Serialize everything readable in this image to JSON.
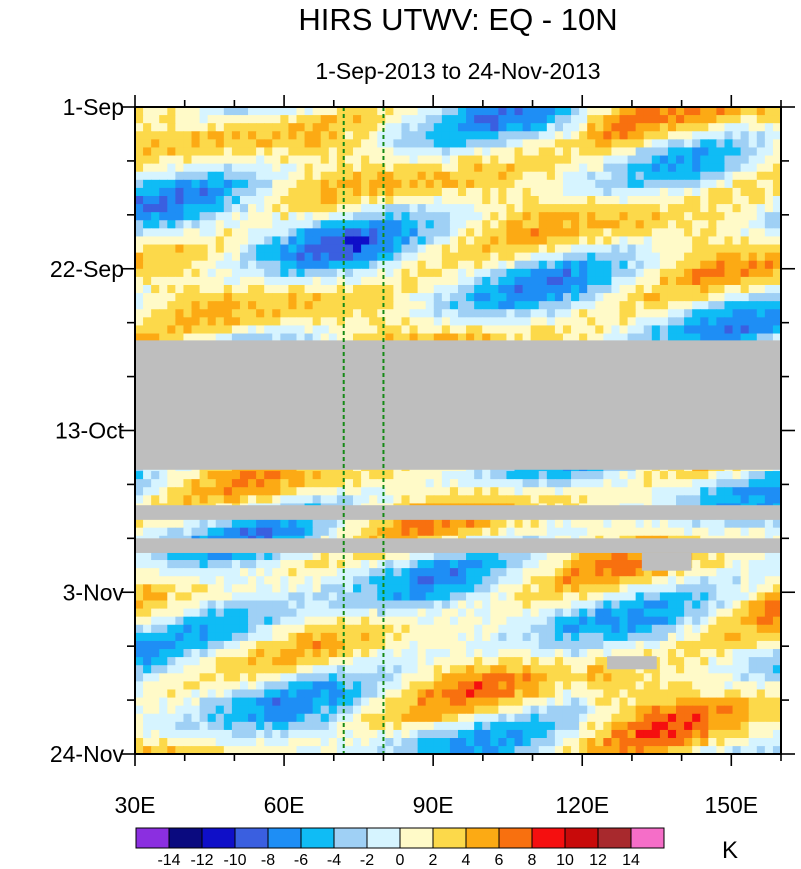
{
  "chart_data": {
    "type": "heatmap",
    "title": "HIRS UTWV: EQ - 10N",
    "subtitle": "1-Sep-2013 to 24-Nov-2013",
    "xlabel": "",
    "ylabel": "",
    "x_range_deg": [
      30,
      160
    ],
    "x_ticks": [
      {
        "value": 30,
        "label": "30E"
      },
      {
        "value": 60,
        "label": "60E"
      },
      {
        "value": 90,
        "label": "90E"
      },
      {
        "value": 120,
        "label": "120E"
      },
      {
        "value": 150,
        "label": "150E"
      }
    ],
    "y_range_days": [
      0,
      84
    ],
    "y_direction": "time increases downward",
    "y_ticks": [
      {
        "value": 0,
        "label": "1-Sep"
      },
      {
        "value": 21,
        "label": "22-Sep"
      },
      {
        "value": 42,
        "label": "13-Oct"
      },
      {
        "value": 63,
        "label": "3-Nov"
      },
      {
        "value": 84,
        "label": "24-Nov"
      }
    ],
    "reference_lines_deg": [
      72,
      80
    ],
    "missing_data_days": [
      {
        "lon_start": 30,
        "lon_end": 160,
        "day_start": 30.3,
        "day_end": 47.1
      },
      {
        "lon_start": 30,
        "lon_end": 160,
        "day_start": 51.7,
        "day_end": 53.6
      },
      {
        "lon_start": 30,
        "lon_end": 160,
        "day_start": 56.0,
        "day_end": 57.9
      },
      {
        "lon_start": 132,
        "lon_end": 142,
        "day_start": 57.9,
        "day_end": 60.2
      },
      {
        "lon_start": 125,
        "lon_end": 135,
        "day_start": 71.3,
        "day_end": 73.0
      }
    ],
    "colorbar": {
      "unit": "K",
      "levels": [
        "-14",
        "-12",
        "-10",
        "-8",
        "-6",
        "-4",
        "-2",
        "0",
        "2",
        "4",
        "6",
        "8",
        "10",
        "12",
        "14"
      ],
      "colors": [
        "#8b2fe0",
        "#0a0a7f",
        "#0f0fc8",
        "#3a5fe0",
        "#1e8ef5",
        "#0fbcf5",
        "#9fd0f5",
        "#d6f4ff",
        "#fffac8",
        "#fcd94a",
        "#fcaa14",
        "#f8700f",
        "#f50f0f",
        "#c80a0a",
        "#a8292d",
        "#f56ec8"
      ]
    }
  }
}
